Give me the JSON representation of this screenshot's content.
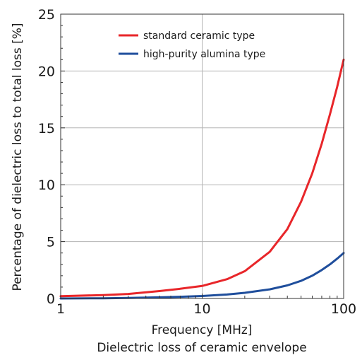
{
  "chart_data": {
    "type": "line",
    "title": "",
    "xlabel": "Frequency [MHz]",
    "caption": "Dielectric loss of ceramic envelope",
    "ylabel": "Percentage of dielectric loss to total loss [%]",
    "x_scale": "log",
    "xlim": [
      1,
      100
    ],
    "ylim": [
      0,
      25
    ],
    "x_ticks": [
      1,
      10,
      100
    ],
    "x_tick_labels": [
      "1",
      "10",
      "100"
    ],
    "y_ticks": [
      0,
      5,
      10,
      15,
      20,
      25
    ],
    "y_tick_labels": [
      "0",
      "5",
      "10",
      "15",
      "20",
      "25"
    ],
    "grid": true,
    "legend_position": "top-center",
    "series": [
      {
        "name": "standard ceramic type",
        "color": "#e8262a",
        "x": [
          1,
          2,
          3,
          5,
          7,
          10,
          15,
          20,
          30,
          40,
          50,
          60,
          70,
          80,
          90,
          100
        ],
        "y": [
          0.2,
          0.3,
          0.4,
          0.65,
          0.85,
          1.1,
          1.7,
          2.4,
          4.1,
          6.1,
          8.5,
          11.0,
          13.6,
          16.2,
          18.6,
          21.0
        ]
      },
      {
        "name": "high-purity alumina type",
        "color": "#1f4e9c",
        "x": [
          1,
          2,
          3,
          5,
          7,
          10,
          15,
          20,
          30,
          40,
          50,
          60,
          70,
          80,
          90,
          100
        ],
        "y": [
          0.0,
          0.02,
          0.05,
          0.1,
          0.15,
          0.22,
          0.35,
          0.5,
          0.8,
          1.15,
          1.55,
          2.0,
          2.5,
          3.0,
          3.5,
          4.0
        ]
      }
    ]
  }
}
